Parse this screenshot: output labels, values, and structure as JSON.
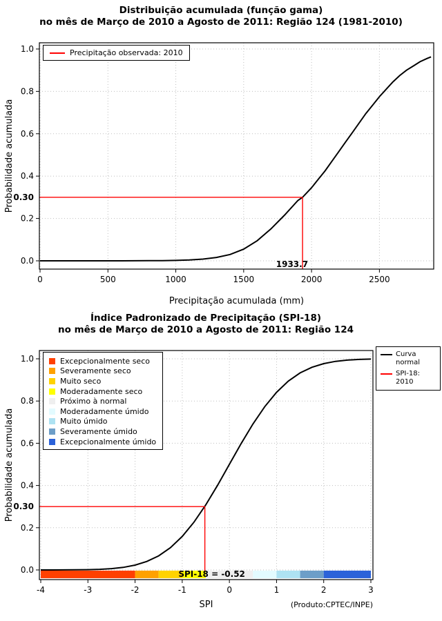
{
  "chart_data": [
    {
      "type": "line",
      "title": "Distribuição acumulada (função gama) no mês de Março de 2010 a Agosto de 2011: Região 124 (1981-2010)",
      "title_line1": "Distribuição acumulada (função gama)",
      "title_line2": "no mês de Março de 2010 a Agosto de 2011: Região 124 (1981-2010)",
      "xlabel": "Precipitação acumulada (mm)",
      "ylabel": "Probabilidade acumulada",
      "xlim": [
        0,
        2900
      ],
      "ylim": [
        0,
        1
      ],
      "xticks": [
        0,
        500,
        1000,
        1500,
        2000,
        2500
      ],
      "yticks": [
        "0.0",
        "0.2",
        "0.4",
        "0.6",
        "0.8",
        "1.0"
      ],
      "grid": true,
      "legend": [
        {
          "label": "Precipitação observada: 2010",
          "color": "#FF0000"
        }
      ],
      "series": [
        {
          "name": "gamma-cdf-curve",
          "color": "#000000",
          "points": [
            [
              0,
              0
            ],
            [
              200,
              0
            ],
            [
              400,
              0
            ],
            [
              600,
              0
            ],
            [
              800,
              0.0005
            ],
            [
              900,
              0.001
            ],
            [
              1000,
              0.002
            ],
            [
              1100,
              0.004
            ],
            [
              1200,
              0.008
            ],
            [
              1300,
              0.016
            ],
            [
              1400,
              0.03
            ],
            [
              1500,
              0.055
            ],
            [
              1600,
              0.095
            ],
            [
              1700,
              0.15
            ],
            [
              1800,
              0.215
            ],
            [
              1900,
              0.285
            ],
            [
              1933.7,
              0.3
            ],
            [
              2000,
              0.345
            ],
            [
              2050,
              0.385
            ],
            [
              2100,
              0.425
            ],
            [
              2150,
              0.47
            ],
            [
              2200,
              0.515
            ],
            [
              2250,
              0.56
            ],
            [
              2300,
              0.605
            ],
            [
              2350,
              0.65
            ],
            [
              2400,
              0.695
            ],
            [
              2450,
              0.735
            ],
            [
              2500,
              0.775
            ],
            [
              2550,
              0.81
            ],
            [
              2600,
              0.845
            ],
            [
              2650,
              0.875
            ],
            [
              2700,
              0.9
            ],
            [
              2750,
              0.92
            ],
            [
              2800,
              0.94
            ],
            [
              2850,
              0.955
            ],
            [
              2880,
              0.963
            ]
          ]
        }
      ],
      "marker": {
        "x": 1933.7,
        "y": 0.3,
        "x_label": "1933.7",
        "y_label": "0.30",
        "color": "#FF0000",
        "vline_to": "axis"
      }
    },
    {
      "type": "line",
      "title": "Índice Padronizado de Precipitação (SPI-18) no mês de Março de 2010 a Agosto de 2011: Região 124",
      "title_line1": "Índice Padronizado de Precipitação (SPI-18)",
      "title_line2": "no mês de Março de 2010 a Agosto de 2011: Região 124",
      "xlabel": "SPI",
      "ylabel": "Probabilidade acumulada",
      "footer": "(Produto:CPTEC/INPE)",
      "xlim": [
        -4,
        3
      ],
      "ylim": [
        0,
        1
      ],
      "xticks": [
        -4,
        -3,
        -2,
        -1,
        0,
        1,
        2,
        3
      ],
      "yticks": [
        "0.0",
        "0.2",
        "0.4",
        "0.6",
        "0.8",
        "1.0"
      ],
      "grid": true,
      "legend_right": [
        {
          "label": "Curva normal",
          "color": "#000000"
        },
        {
          "label": "SPI-18: 2010",
          "color": "#FF0000"
        }
      ],
      "series": [
        {
          "name": "normal-cdf-curve",
          "color": "#000000",
          "points": [
            [
              -4,
              0.0
            ],
            [
              -3.75,
              0.0001
            ],
            [
              -3.5,
              0.0002
            ],
            [
              -3.25,
              0.0006
            ],
            [
              -3,
              0.0013
            ],
            [
              -2.75,
              0.003
            ],
            [
              -2.5,
              0.0062
            ],
            [
              -2.25,
              0.0122
            ],
            [
              -2,
              0.0228
            ],
            [
              -1.75,
              0.0401
            ],
            [
              -1.5,
              0.0668
            ],
            [
              -1.25,
              0.1056
            ],
            [
              -1,
              0.1587
            ],
            [
              -0.75,
              0.2266
            ],
            [
              -0.52,
              0.3015
            ],
            [
              -0.5,
              0.3085
            ],
            [
              -0.25,
              0.4013
            ],
            [
              0,
              0.5
            ],
            [
              0.25,
              0.5987
            ],
            [
              0.5,
              0.6915
            ],
            [
              0.75,
              0.7734
            ],
            [
              1,
              0.8413
            ],
            [
              1.25,
              0.8944
            ],
            [
              1.5,
              0.9332
            ],
            [
              1.75,
              0.9599
            ],
            [
              2,
              0.9772
            ],
            [
              2.25,
              0.9878
            ],
            [
              2.5,
              0.9938
            ],
            [
              2.75,
              0.997
            ],
            [
              3,
              0.9987
            ]
          ]
        }
      ],
      "marker": {
        "x": -0.52,
        "y": 0.3,
        "y_label": "0.30",
        "bar_label": "SPI-18 = -0.52",
        "color": "#FF0000",
        "vline_to": "colorbar"
      },
      "categories": [
        {
          "label": "Excepcionalmente seco",
          "color": "#FF4000",
          "from": -4,
          "to": -2
        },
        {
          "label": "Severamente seco",
          "color": "#FFA100",
          "from": -2,
          "to": -1.5
        },
        {
          "label": "Muito seco",
          "color": "#FFD200",
          "from": -1.5,
          "to": -1
        },
        {
          "label": "Moderadamente seco",
          "color": "#FFFF00",
          "from": -1,
          "to": -0.5
        },
        {
          "label": "Próximo à normal",
          "color": "#EFEFEF",
          "from": -0.5,
          "to": 0.5
        },
        {
          "label": "Moderadamente úmido",
          "color": "#E3FBFF",
          "from": 0.5,
          "to": 1
        },
        {
          "label": "Muito úmido",
          "color": "#AEE2F2",
          "from": 1,
          "to": 1.5
        },
        {
          "label": "Severamente úmido",
          "color": "#6D9EC8",
          "from": 1.5,
          "to": 2
        },
        {
          "label": "Excepcionalmente úmido",
          "color": "#2B62D9",
          "from": 2,
          "to": 3
        }
      ]
    }
  ]
}
